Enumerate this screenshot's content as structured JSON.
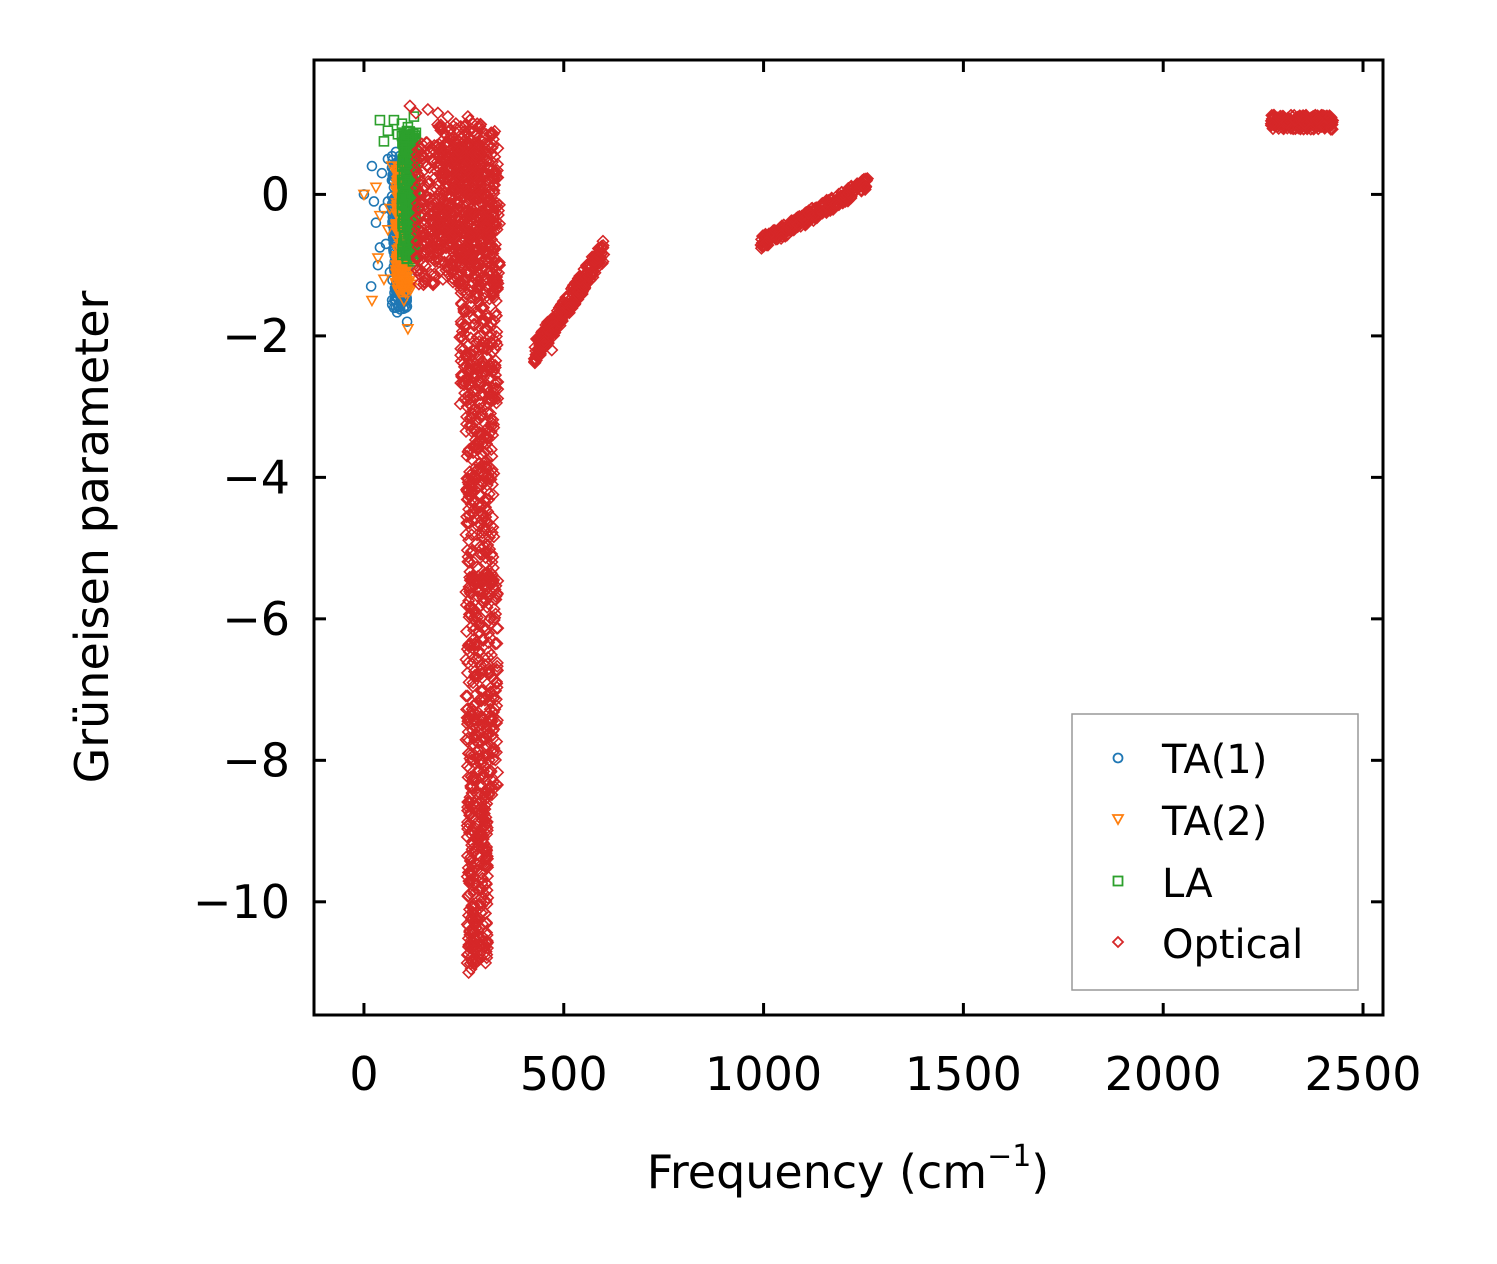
{
  "chart_data": {
    "type": "scatter",
    "title": "",
    "xlabel": "Frequency (cm",
    "xlabel_sup": "−1",
    "xlabel_close": ")",
    "ylabel": "Grüneisen parameter",
    "xlim": [
      -125,
      2550
    ],
    "ylim": [
      -11.6,
      1.9
    ],
    "x_ticks": [
      0,
      500,
      1000,
      1500,
      2000,
      2500
    ],
    "x_tick_labels": [
      "0",
      "500",
      "1000",
      "1500",
      "2000",
      "2500"
    ],
    "y_ticks": [
      0,
      -2,
      -4,
      -6,
      -8,
      -10
    ],
    "y_tick_labels": [
      "0",
      "−2",
      "−4",
      "−6",
      "−8",
      "−10"
    ],
    "grid": false,
    "legend_position": "bottom-right",
    "series": [
      {
        "name": "TA(1)",
        "marker": "circle",
        "color": "#1f77b4",
        "points": [
          [
            0,
            0
          ],
          [
            20,
            0.4
          ],
          [
            25,
            -0.1
          ],
          [
            30,
            -0.4
          ],
          [
            35,
            -1.0
          ],
          [
            40,
            -0.75
          ],
          [
            45,
            0.3
          ],
          [
            50,
            -0.2
          ],
          [
            55,
            -0.7
          ],
          [
            60,
            0.5
          ],
          [
            65,
            -1.1
          ],
          [
            70,
            0.2
          ],
          [
            75,
            -0.5
          ],
          [
            80,
            0.6
          ],
          [
            85,
            -1.2
          ],
          [
            90,
            0.0
          ],
          [
            95,
            -0.3
          ],
          [
            100,
            0.3
          ],
          [
            105,
            -1.6
          ],
          [
            108,
            -1.8
          ],
          [
            110,
            -0.9
          ],
          [
            18,
            -1.3
          ],
          [
            60,
            -0.1
          ],
          [
            75,
            0.1
          ],
          [
            88,
            -0.6
          ]
        ],
        "band": {
          "x": [
            70,
            112
          ],
          "y": [
            -1.7,
            0.55
          ]
        }
      },
      {
        "name": "TA(2)",
        "marker": "triangle-down",
        "color": "#ff7f0e",
        "points": [
          [
            0,
            0
          ],
          [
            20,
            -1.5
          ],
          [
            30,
            0.1
          ],
          [
            40,
            -0.3
          ],
          [
            50,
            -1.2
          ],
          [
            60,
            -0.5
          ],
          [
            70,
            0.4
          ],
          [
            80,
            -1.0
          ],
          [
            90,
            0.2
          ],
          [
            100,
            -1.5
          ],
          [
            110,
            -1.9
          ],
          [
            120,
            0.3
          ],
          [
            35,
            -0.9
          ],
          [
            65,
            -0.2
          ],
          [
            95,
            -0.8
          ],
          [
            105,
            0.1
          ]
        ],
        "band": {
          "x": [
            80,
            120
          ],
          "y": [
            -1.4,
            0.4
          ]
        }
      },
      {
        "name": "LA",
        "marker": "square",
        "color": "#2ca02c",
        "points": [
          [
            40,
            1.05
          ],
          [
            60,
            0.9
          ],
          [
            75,
            1.05
          ],
          [
            85,
            0.85
          ],
          [
            95,
            1.0
          ],
          [
            100,
            0.6
          ],
          [
            110,
            0.95
          ],
          [
            120,
            0.5
          ],
          [
            125,
            1.1
          ],
          [
            115,
            0.2
          ],
          [
            125,
            -0.8
          ],
          [
            130,
            -0.3
          ],
          [
            105,
            0.3
          ],
          [
            50,
            0.75
          ]
        ],
        "band": {
          "x": [
            95,
            130
          ],
          "y": [
            -0.95,
            0.9
          ]
        }
      },
      {
        "name": "Optical",
        "marker": "diamond",
        "color": "#d62728",
        "clusters": [
          {
            "x": [
              130,
              340
            ],
            "y": [
              -1.3,
              0.75
            ]
          },
          {
            "x": [
              180,
              330
            ],
            "y": [
              -1.0,
              1.0
            ]
          },
          {
            "x": [
              240,
              335
            ],
            "y": [
              -3.0,
              -1.2
            ]
          },
          {
            "x": [
              255,
              325
            ],
            "y": [
              -5.5,
              -3.0
            ]
          },
          {
            "x": [
              255,
              335
            ],
            "y": [
              -8.5,
              -5.4
            ]
          },
          {
            "x": [
              258,
              310
            ],
            "y": [
              -10.9,
              -8.5
            ]
          },
          {
            "x": [
              425,
              600
            ],
            "y": [
              -2.25,
              -0.8
            ],
            "trend": true
          },
          {
            "x": [
              990,
              1260
            ],
            "y": [
              -0.7,
              0.15
            ],
            "trend": true
          },
          {
            "x": [
              2270,
              2425
            ],
            "y": [
              0.92,
              1.12
            ],
            "trend": false
          }
        ],
        "points": [
          [
            115,
            1.25
          ],
          [
            130,
            1.15
          ],
          [
            160,
            1.2
          ],
          [
            185,
            1.15
          ],
          [
            210,
            1.1
          ],
          [
            260,
            1.1
          ],
          [
            265,
            1.05
          ],
          [
            230,
            1.0
          ],
          [
            265,
            -8.75
          ],
          [
            262,
            -11.0
          ],
          [
            268,
            -10.95
          ],
          [
            300,
            -2.1
          ],
          [
            305,
            -2.3
          ],
          [
            290,
            -2.65
          ],
          [
            248,
            -2.55
          ],
          [
            280,
            -3.2
          ],
          [
            270,
            -4.0
          ],
          [
            300,
            -3.8
          ],
          [
            295,
            -4.6
          ],
          [
            305,
            -4.3
          ],
          [
            258,
            -3.0
          ],
          [
            320,
            -5.5
          ],
          [
            275,
            -5.9
          ],
          [
            600,
            -0.85
          ],
          [
            585,
            -0.9
          ],
          [
            470,
            -2.2
          ],
          [
            1255,
            0.1
          ],
          [
            2330,
            1.05
          ]
        ]
      }
    ]
  }
}
